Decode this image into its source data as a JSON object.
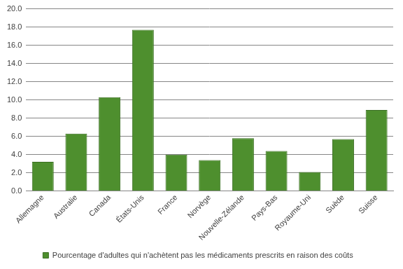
{
  "chart_data": {
    "type": "bar",
    "categories": [
      "Allemagne",
      "Australie",
      "Canada",
      "États-Unis",
      "France",
      "Norvège",
      "Nouvelle-Zélande",
      "Pays-Bas",
      "Royaume-Uni",
      "Suède",
      "Suisse"
    ],
    "series": [
      {
        "name": "Pourcentage d'adultes qui n'achètent pas les médicaments prescrits en raison des coûts",
        "color": "#4e8f2e",
        "values": [
          3.2,
          6.3,
          10.3,
          17.7,
          4.0,
          3.4,
          5.8,
          4.4,
          2.1,
          5.7,
          8.9
        ]
      }
    ],
    "ylim": [
      0,
      20
    ],
    "yticks": [
      {
        "value": 0,
        "label": "0.0"
      },
      {
        "value": 2,
        "label": "2.0"
      },
      {
        "value": 4,
        "label": "4.0"
      },
      {
        "value": 6,
        "label": "6.0"
      },
      {
        "value": 8,
        "label": "8.0"
      },
      {
        "value": 10,
        "label": "10.0"
      },
      {
        "value": 12,
        "label": "12.0"
      },
      {
        "value": 14,
        "label": "14.0"
      },
      {
        "value": 16,
        "label": "16.0"
      },
      {
        "value": 18,
        "label": "18.0"
      },
      {
        "value": 20,
        "label": "20.0"
      }
    ],
    "grid": true,
    "legend": "bottom"
  }
}
